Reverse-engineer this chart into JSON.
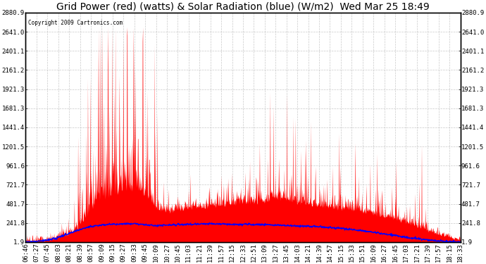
{
  "title": "Grid Power (red) (watts) & Solar Radiation (blue) (W/m2)  Wed Mar 25 18:49",
  "copyright_text": "Copyright 2009 Cartronics.com",
  "y_min": 1.9,
  "y_max": 2880.9,
  "y_ticks": [
    1.9,
    241.8,
    481.7,
    721.7,
    961.6,
    1201.5,
    1441.4,
    1681.3,
    1921.3,
    2161.2,
    2401.1,
    2641.0,
    2880.9
  ],
  "x_tick_labels": [
    "06:46",
    "07:27",
    "07:45",
    "08:03",
    "08:21",
    "08:39",
    "08:57",
    "09:09",
    "09:15",
    "09:27",
    "09:33",
    "09:45",
    "10:09",
    "10:27",
    "10:45",
    "11:03",
    "11:21",
    "11:39",
    "11:57",
    "12:15",
    "12:33",
    "12:51",
    "13:09",
    "13:27",
    "13:45",
    "14:03",
    "14:21",
    "14:39",
    "14:57",
    "15:15",
    "15:33",
    "15:51",
    "16:09",
    "16:27",
    "16:45",
    "17:03",
    "17:21",
    "17:39",
    "17:57",
    "18:15",
    "18:33"
  ],
  "bg_color": "#ffffff",
  "plot_bg_color": "#ffffff",
  "grid_color": "#bbbbbb",
  "red_color": "#ff0000",
  "blue_color": "#0000ff",
  "title_fontsize": 10,
  "tick_fontsize": 6.5,
  "grid_base": [
    2,
    4,
    8,
    30,
    80,
    180,
    350,
    480,
    520,
    600,
    620,
    550,
    400,
    350,
    380,
    400,
    420,
    410,
    430,
    450,
    460,
    470,
    480,
    520,
    500,
    470,
    450,
    430,
    410,
    390,
    370,
    350,
    320,
    290,
    260,
    220,
    170,
    130,
    90,
    50,
    15
  ],
  "solar_base": [
    5,
    12,
    25,
    60,
    110,
    160,
    200,
    220,
    225,
    230,
    235,
    220,
    210,
    215,
    220,
    225,
    230,
    235,
    230,
    225,
    228,
    225,
    220,
    215,
    210,
    205,
    200,
    195,
    185,
    175,
    160,
    145,
    125,
    105,
    85,
    65,
    45,
    30,
    18,
    10,
    4
  ]
}
